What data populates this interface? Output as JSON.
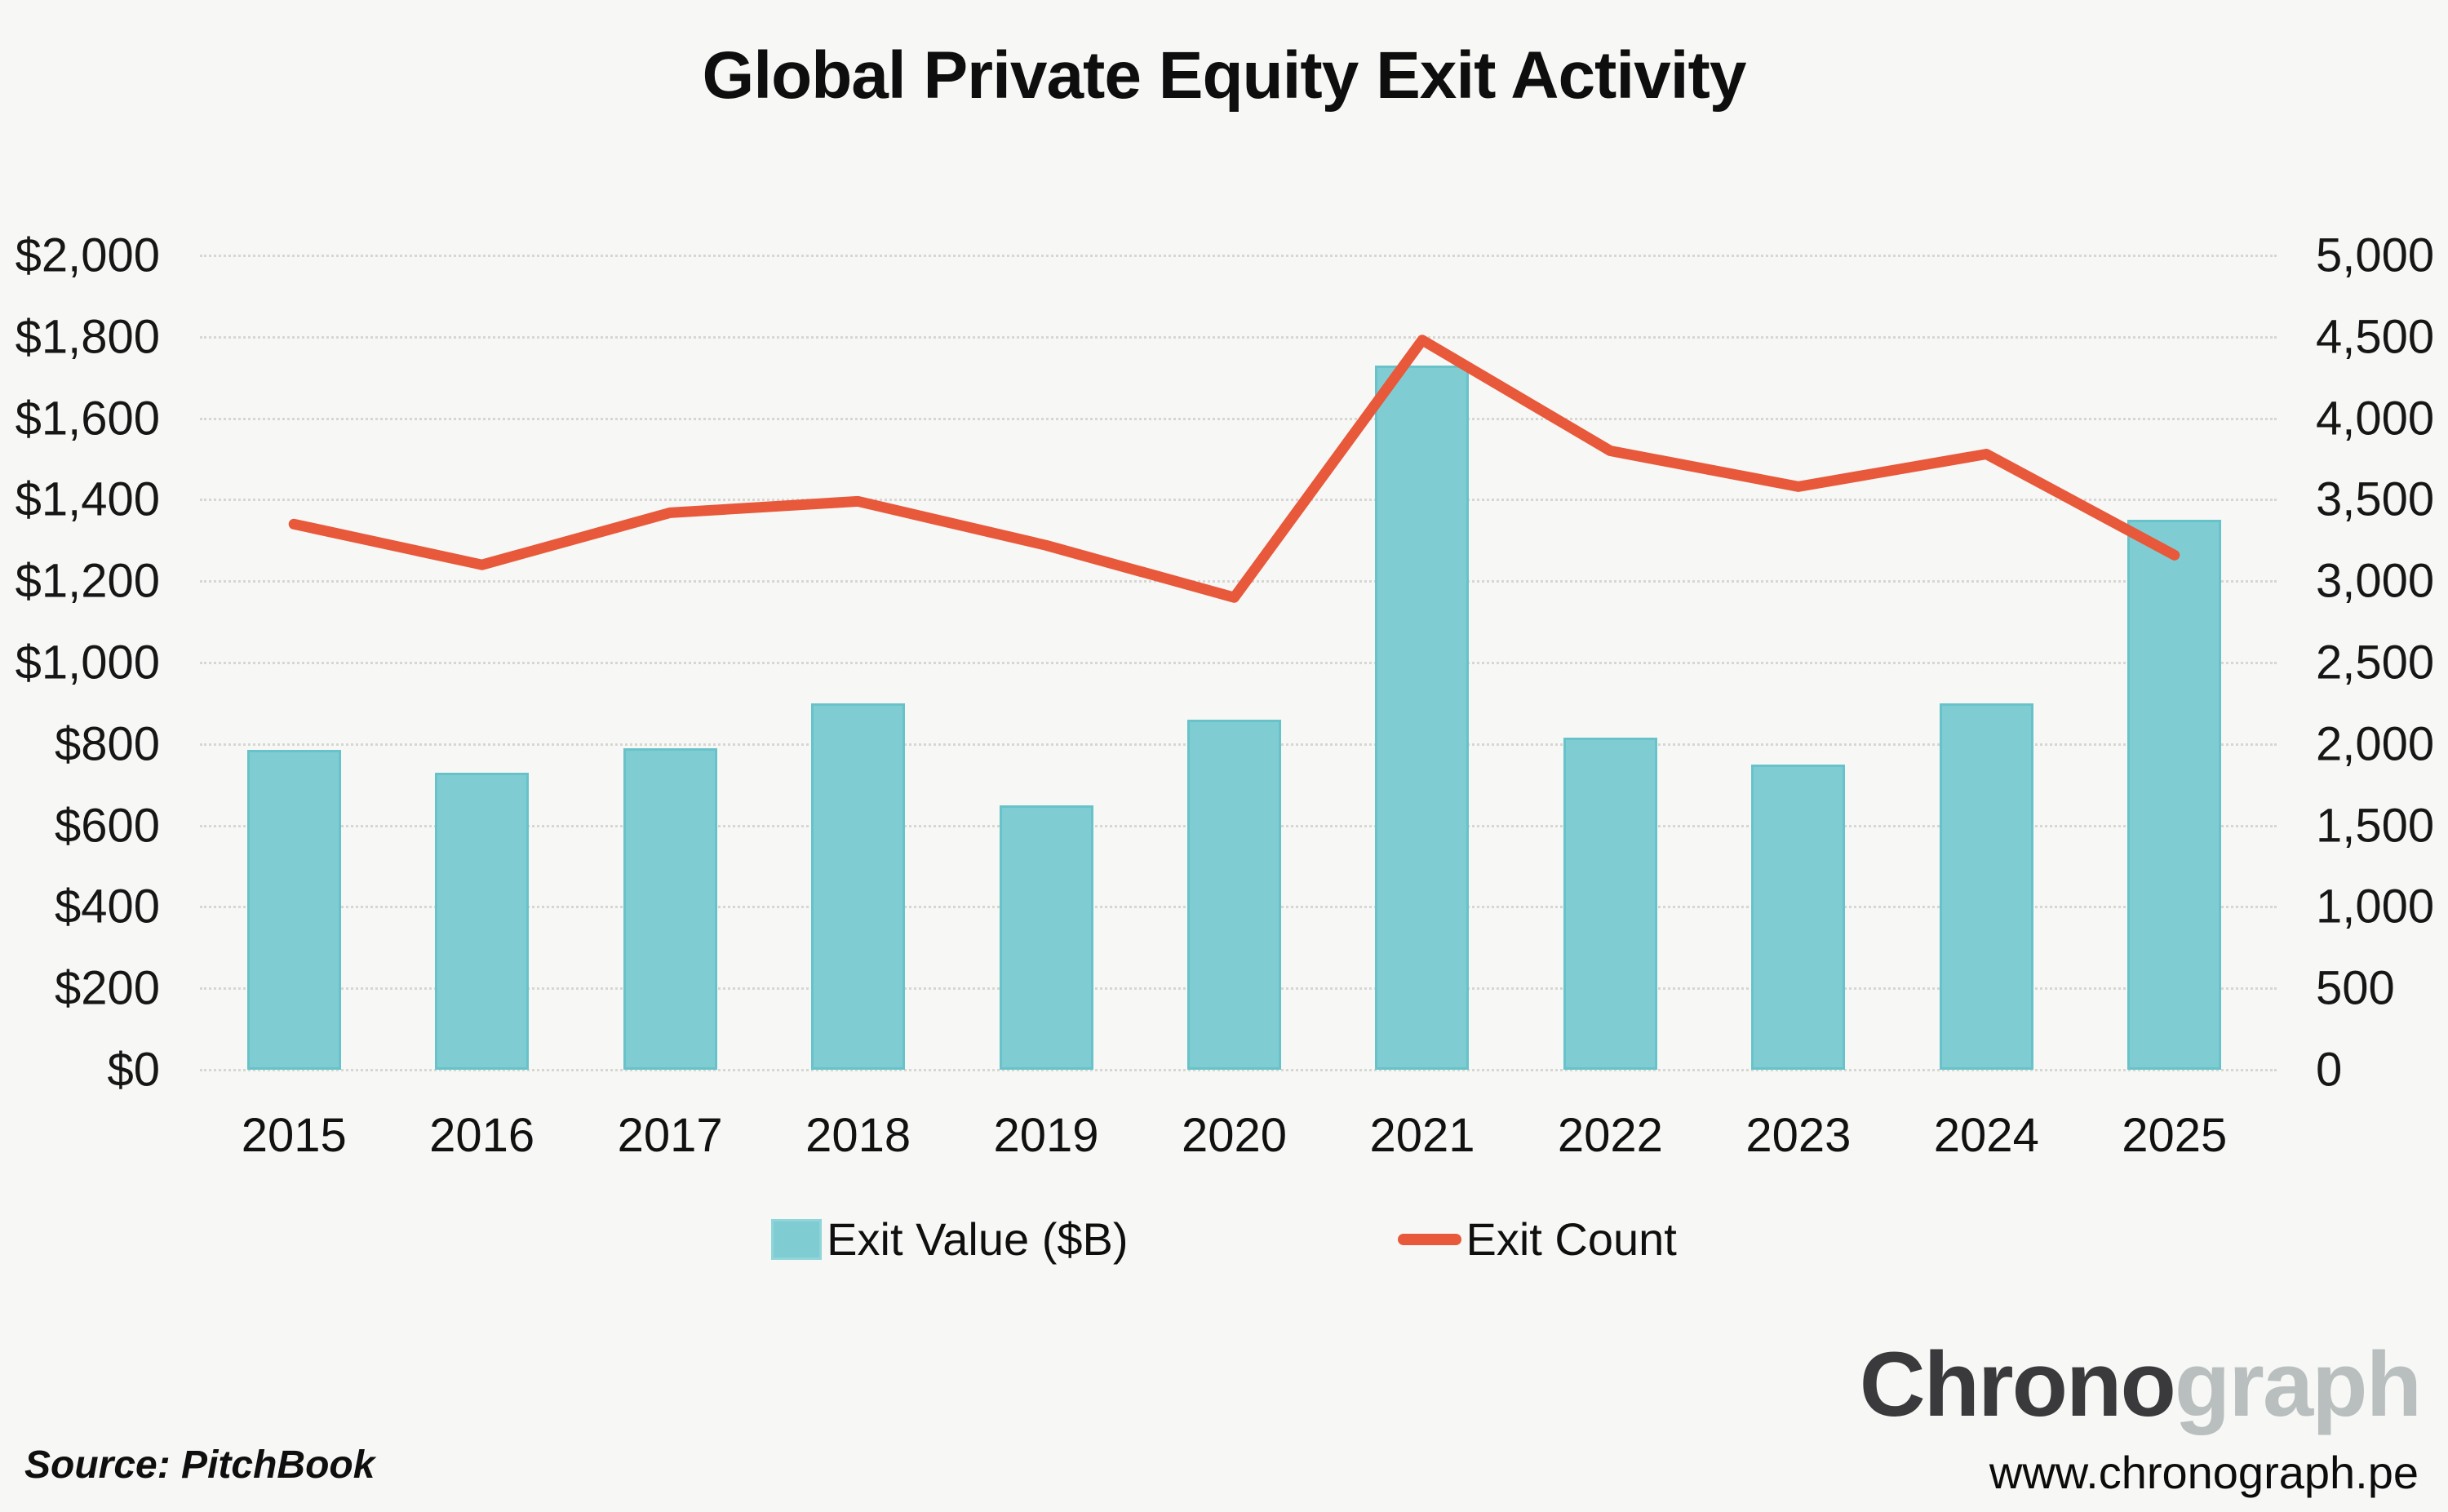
{
  "title": "Global Private Equity Exit Activity",
  "legend": {
    "bar_label": "Exit Value ($B)",
    "line_label": "Exit Count"
  },
  "footer": {
    "source": "Source: PitchBook",
    "brand_dark": "Chrono",
    "brand_light": "graph",
    "url": "www.chronograph.pe"
  },
  "colors": {
    "background": "#f7f7f5",
    "bar": "#7fcdd2",
    "bar_border": "#67c3c9",
    "line": "#e8583a",
    "grid": "#d6d6d3",
    "text": "#141414",
    "brand_dark": "#3a3a3c",
    "brand_light": "#b9bfbf"
  },
  "chart_data": {
    "type": "bar",
    "subtype": "bar+line dual axis",
    "title": "Global Private Equity Exit Activity",
    "categories": [
      "2015",
      "2016",
      "2017",
      "2018",
      "2019",
      "2020",
      "2021",
      "2022",
      "2023",
      "2024",
      "2025"
    ],
    "series": [
      {
        "name": "Exit Value ($B)",
        "type": "bar",
        "axis": "left",
        "color": "#7fcdd2",
        "values": [
          785,
          730,
          790,
          900,
          650,
          860,
          1730,
          815,
          750,
          900,
          1350
        ]
      },
      {
        "name": "Exit Count",
        "type": "line",
        "axis": "right",
        "color": "#e8583a",
        "values": [
          3350,
          3100,
          3420,
          3490,
          3220,
          2900,
          4480,
          3800,
          3580,
          3780,
          3160
        ]
      }
    ],
    "left_axis": {
      "min": 0,
      "max": 2000,
      "step": 200,
      "prefix": "$",
      "ticks": [
        "$2,000",
        "$1,800",
        "$1,600",
        "$1,400",
        "$1,200",
        "$1,000",
        "$800",
        "$600",
        "$400",
        "$200",
        "$0"
      ]
    },
    "right_axis": {
      "min": 0,
      "max": 5000,
      "step": 500,
      "ticks": [
        "5,000",
        "4,500",
        "4,000",
        "3,500",
        "3,000",
        "2,500",
        "2,000",
        "1,500",
        "1,000",
        "500",
        "0"
      ]
    },
    "grid": "horizontal dotted lines",
    "legend_position": "bottom",
    "source": "PitchBook"
  }
}
